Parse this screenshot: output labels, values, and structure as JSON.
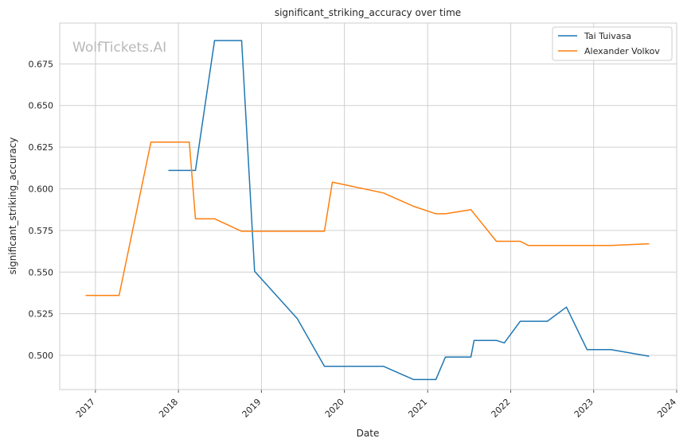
{
  "chart_data": {
    "type": "line",
    "title": "significant_striking_accuracy over time",
    "xlabel": "Date",
    "ylabel": "significant_striking_accuracy",
    "watermark": "WolfTickets.AI",
    "legend_position": "top-right",
    "grid": true,
    "xlim": [
      "2016-07-28",
      "2024-01-01"
    ],
    "ylim": [
      0.4795,
      0.6995
    ],
    "x_ticks": [
      "2017-01-01",
      "2018-01-01",
      "2019-01-01",
      "2020-01-01",
      "2021-01-01",
      "2022-01-01",
      "2023-01-01",
      "2024-01-01"
    ],
    "x_tick_labels": [
      "2017",
      "2018",
      "2019",
      "2020",
      "2021",
      "2022",
      "2023",
      "2024"
    ],
    "y_ticks": [
      0.5,
      0.525,
      0.55,
      0.575,
      0.6,
      0.625,
      0.65,
      0.675
    ],
    "y_tick_labels": [
      "0.500",
      "0.525",
      "0.550",
      "0.575",
      "0.600",
      "0.625",
      "0.650",
      "0.675"
    ],
    "series": [
      {
        "name": "Tai Tuivasa",
        "color": "#1f77b4",
        "points": [
          [
            "2017-11-18",
            0.611
          ],
          [
            "2018-03-17",
            0.611
          ],
          [
            "2018-06-09",
            0.689
          ],
          [
            "2018-10-06",
            0.689
          ],
          [
            "2018-12-02",
            0.5505
          ],
          [
            "2019-06-08",
            0.522
          ],
          [
            "2019-10-05",
            0.4935
          ],
          [
            "2020-06-20",
            0.4935
          ],
          [
            "2020-10-31",
            0.4855
          ],
          [
            "2021-02-06",
            0.4855
          ],
          [
            "2021-03-20",
            0.499
          ],
          [
            "2021-07-10",
            0.499
          ],
          [
            "2021-07-24",
            0.509
          ],
          [
            "2021-10-30",
            0.509
          ],
          [
            "2021-12-04",
            0.5075
          ],
          [
            "2022-02-12",
            0.5205
          ],
          [
            "2022-06-11",
            0.5205
          ],
          [
            "2022-09-03",
            0.529
          ],
          [
            "2022-12-03",
            0.5035
          ],
          [
            "2023-03-18",
            0.5035
          ],
          [
            "2023-09-02",
            0.4995
          ]
        ]
      },
      {
        "name": "Alexander Volkov",
        "color": "#ff7f0e",
        "points": [
          [
            "2016-11-19",
            0.536
          ],
          [
            "2017-04-15",
            0.536
          ],
          [
            "2017-09-02",
            0.628
          ],
          [
            "2018-02-18",
            0.628
          ],
          [
            "2018-03-17",
            0.582
          ],
          [
            "2018-06-09",
            0.582
          ],
          [
            "2018-10-06",
            0.5745
          ],
          [
            "2019-10-05",
            0.5745
          ],
          [
            "2019-11-09",
            0.604
          ],
          [
            "2020-06-20",
            0.5975
          ],
          [
            "2020-10-31",
            0.5895
          ],
          [
            "2021-02-06",
            0.585
          ],
          [
            "2021-03-20",
            0.585
          ],
          [
            "2021-07-10",
            0.5875
          ],
          [
            "2021-10-30",
            0.5685
          ],
          [
            "2022-02-12",
            0.5685
          ],
          [
            "2022-03-19",
            0.566
          ],
          [
            "2023-03-18",
            0.566
          ],
          [
            "2023-09-02",
            0.567
          ]
        ]
      }
    ]
  }
}
